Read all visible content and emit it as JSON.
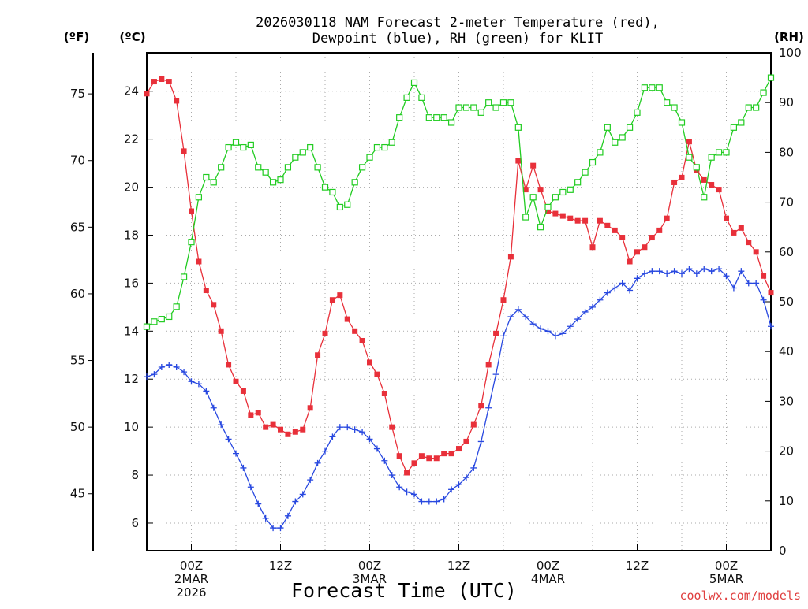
{
  "chart_data": {
    "type": "line",
    "title_line1": "2026030118 NAM Forecast 2-meter Temperature (red),",
    "title_line2": "Dewpoint (blue), RH (green) for KLIT",
    "xlabel": "Forecast Time (UTC)",
    "credit": "coolwx.com/models",
    "units": {
      "fahrenheit": "(ºF)",
      "celsius": "(ºC)",
      "rh": "(RH)"
    },
    "celsius_axis": {
      "range": [
        4.85,
        25.6
      ],
      "ticks": [
        "6",
        "8",
        "10",
        "12",
        "14",
        "16",
        "18",
        "20",
        "22",
        "24"
      ]
    },
    "fahrenheit_ticks": [
      "45",
      "50",
      "55",
      "60",
      "65",
      "70",
      "75"
    ],
    "rh_axis": {
      "range": [
        0,
        100
      ],
      "ticks": [
        "0",
        "10",
        "20",
        "30",
        "40",
        "50",
        "60",
        "70",
        "80",
        "90",
        "100"
      ]
    },
    "x_hours_range": [
      0,
      84
    ],
    "x_ticks": [
      {
        "hour": 6,
        "line1": "00Z",
        "line2": "2MAR",
        "line3": "2026"
      },
      {
        "hour": 18,
        "line1": "12Z",
        "line2": "",
        "line3": ""
      },
      {
        "hour": 30,
        "line1": "00Z",
        "line2": "3MAR",
        "line3": ""
      },
      {
        "hour": 42,
        "line1": "12Z",
        "line2": "",
        "line3": ""
      },
      {
        "hour": 54,
        "line1": "00Z",
        "line2": "4MAR",
        "line3": ""
      },
      {
        "hour": 66,
        "line1": "12Z",
        "line2": "",
        "line3": ""
      },
      {
        "hour": 78,
        "line1": "00Z",
        "line2": "5MAR",
        "line3": ""
      }
    ],
    "series": [
      {
        "name": "2-meter Temperature",
        "unit": "°C",
        "color": "#e8303a",
        "marker": "filled-square",
        "points": [
          [
            0,
            23.9
          ],
          [
            1,
            24.4
          ],
          [
            2,
            24.5
          ],
          [
            3,
            24.4
          ],
          [
            4,
            23.6
          ],
          [
            5,
            21.5
          ],
          [
            6,
            19.0
          ],
          [
            7,
            16.9
          ],
          [
            8,
            15.7
          ],
          [
            9,
            15.1
          ],
          [
            10,
            14.0
          ],
          [
            11,
            12.6
          ],
          [
            12,
            11.9
          ],
          [
            13,
            11.5
          ],
          [
            14,
            10.5
          ],
          [
            15,
            10.6
          ],
          [
            16,
            10.0
          ],
          [
            17,
            10.1
          ],
          [
            18,
            9.9
          ],
          [
            19,
            9.7
          ],
          [
            20,
            9.8
          ],
          [
            21,
            9.9
          ],
          [
            22,
            10.8
          ],
          [
            23,
            13.0
          ],
          [
            24,
            13.9
          ],
          [
            25,
            15.3
          ],
          [
            26,
            15.5
          ],
          [
            27,
            14.5
          ],
          [
            28,
            14.0
          ],
          [
            29,
            13.6
          ],
          [
            30,
            12.7
          ],
          [
            31,
            12.2
          ],
          [
            32,
            11.4
          ],
          [
            33,
            10.0
          ],
          [
            34,
            8.8
          ],
          [
            35,
            8.1
          ],
          [
            36,
            8.5
          ],
          [
            37,
            8.8
          ],
          [
            38,
            8.7
          ],
          [
            39,
            8.7
          ],
          [
            40,
            8.9
          ],
          [
            41,
            8.9
          ],
          [
            42,
            9.1
          ],
          [
            43,
            9.4
          ],
          [
            44,
            10.1
          ],
          [
            45,
            10.9
          ],
          [
            46,
            12.6
          ],
          [
            47,
            13.9
          ],
          [
            48,
            15.3
          ],
          [
            49,
            17.1
          ],
          [
            50,
            21.1
          ],
          [
            51,
            19.9
          ],
          [
            52,
            20.9
          ],
          [
            53,
            19.9
          ],
          [
            54,
            19.0
          ],
          [
            55,
            18.9
          ],
          [
            56,
            18.8
          ],
          [
            57,
            18.7
          ],
          [
            58,
            18.6
          ],
          [
            59,
            18.6
          ],
          [
            60,
            17.5
          ],
          [
            61,
            18.6
          ],
          [
            62,
            18.4
          ],
          [
            63,
            18.2
          ],
          [
            64,
            17.9
          ],
          [
            65,
            16.9
          ],
          [
            66,
            17.3
          ],
          [
            67,
            17.5
          ],
          [
            68,
            17.9
          ],
          [
            69,
            18.2
          ],
          [
            70,
            18.7
          ],
          [
            71,
            20.2
          ],
          [
            72,
            20.4
          ],
          [
            73,
            21.9
          ],
          [
            74,
            20.7
          ],
          [
            75,
            20.3
          ],
          [
            76,
            20.1
          ],
          [
            77,
            19.9
          ],
          [
            78,
            18.7
          ],
          [
            79,
            18.1
          ],
          [
            80,
            18.3
          ],
          [
            81,
            17.7
          ],
          [
            82,
            17.3
          ],
          [
            83,
            16.3
          ],
          [
            84,
            15.6
          ]
        ]
      },
      {
        "name": "Dewpoint",
        "unit": "°C",
        "color": "#2848e0",
        "marker": "plus",
        "points": [
          [
            0,
            12.1
          ],
          [
            1,
            12.2
          ],
          [
            2,
            12.5
          ],
          [
            3,
            12.6
          ],
          [
            4,
            12.5
          ],
          [
            5,
            12.3
          ],
          [
            6,
            11.9
          ],
          [
            7,
            11.8
          ],
          [
            8,
            11.5
          ],
          [
            9,
            10.8
          ],
          [
            10,
            10.1
          ],
          [
            11,
            9.5
          ],
          [
            12,
            8.9
          ],
          [
            13,
            8.3
          ],
          [
            14,
            7.5
          ],
          [
            15,
            6.8
          ],
          [
            16,
            6.2
          ],
          [
            17,
            5.8
          ],
          [
            18,
            5.8
          ],
          [
            19,
            6.3
          ],
          [
            20,
            6.9
          ],
          [
            21,
            7.2
          ],
          [
            22,
            7.8
          ],
          [
            23,
            8.5
          ],
          [
            24,
            9.0
          ],
          [
            25,
            9.6
          ],
          [
            26,
            10.0
          ],
          [
            27,
            10.0
          ],
          [
            28,
            9.9
          ],
          [
            29,
            9.8
          ],
          [
            30,
            9.5
          ],
          [
            31,
            9.1
          ],
          [
            32,
            8.6
          ],
          [
            33,
            8.0
          ],
          [
            34,
            7.5
          ],
          [
            35,
            7.3
          ],
          [
            36,
            7.2
          ],
          [
            37,
            6.9
          ],
          [
            38,
            6.9
          ],
          [
            39,
            6.9
          ],
          [
            40,
            7.0
          ],
          [
            41,
            7.4
          ],
          [
            42,
            7.6
          ],
          [
            43,
            7.9
          ],
          [
            44,
            8.3
          ],
          [
            45,
            9.4
          ],
          [
            46,
            10.8
          ],
          [
            47,
            12.2
          ],
          [
            48,
            13.8
          ],
          [
            49,
            14.6
          ],
          [
            50,
            14.9
          ],
          [
            51,
            14.6
          ],
          [
            52,
            14.3
          ],
          [
            53,
            14.1
          ],
          [
            54,
            14.0
          ],
          [
            55,
            13.8
          ],
          [
            56,
            13.9
          ],
          [
            57,
            14.2
          ],
          [
            58,
            14.5
          ],
          [
            59,
            14.8
          ],
          [
            60,
            15.0
          ],
          [
            61,
            15.3
          ],
          [
            62,
            15.6
          ],
          [
            63,
            15.8
          ],
          [
            64,
            16.0
          ],
          [
            65,
            15.7
          ],
          [
            66,
            16.2
          ],
          [
            67,
            16.4
          ],
          [
            68,
            16.5
          ],
          [
            69,
            16.5
          ],
          [
            70,
            16.4
          ],
          [
            71,
            16.5
          ],
          [
            72,
            16.4
          ],
          [
            73,
            16.6
          ],
          [
            74,
            16.4
          ],
          [
            75,
            16.6
          ],
          [
            76,
            16.5
          ],
          [
            77,
            16.6
          ],
          [
            78,
            16.3
          ],
          [
            79,
            15.8
          ],
          [
            80,
            16.5
          ],
          [
            81,
            16.0
          ],
          [
            82,
            16.0
          ],
          [
            83,
            15.3
          ],
          [
            84,
            14.2
          ]
        ]
      },
      {
        "name": "RH",
        "unit": "%",
        "color": "#22cc22",
        "marker": "open-square",
        "points": [
          [
            0,
            45
          ],
          [
            1,
            46
          ],
          [
            2,
            46.5
          ],
          [
            3,
            47
          ],
          [
            4,
            49
          ],
          [
            5,
            55
          ],
          [
            6,
            62
          ],
          [
            7,
            71
          ],
          [
            8,
            75
          ],
          [
            9,
            74
          ],
          [
            10,
            77
          ],
          [
            11,
            81
          ],
          [
            12,
            82
          ],
          [
            13,
            81
          ],
          [
            14,
            81.5
          ],
          [
            15,
            77
          ],
          [
            16,
            76
          ],
          [
            17,
            74
          ],
          [
            18,
            74.5
          ],
          [
            19,
            77
          ],
          [
            20,
            79
          ],
          [
            21,
            80
          ],
          [
            22,
            81
          ],
          [
            23,
            77
          ],
          [
            24,
            73
          ],
          [
            25,
            72
          ],
          [
            26,
            69
          ],
          [
            27,
            69.5
          ],
          [
            28,
            74
          ],
          [
            29,
            77
          ],
          [
            30,
            79
          ],
          [
            31,
            81
          ],
          [
            32,
            81
          ],
          [
            33,
            82
          ],
          [
            34,
            87
          ],
          [
            35,
            91
          ],
          [
            36,
            94
          ],
          [
            37,
            91
          ],
          [
            38,
            87
          ],
          [
            39,
            87
          ],
          [
            40,
            87
          ],
          [
            41,
            86
          ],
          [
            42,
            89
          ],
          [
            43,
            89
          ],
          [
            44,
            89
          ],
          [
            45,
            88
          ],
          [
            46,
            90
          ],
          [
            47,
            89
          ],
          [
            48,
            90
          ],
          [
            49,
            90
          ],
          [
            50,
            85
          ],
          [
            51,
            67
          ],
          [
            52,
            71
          ],
          [
            53,
            65
          ],
          [
            54,
            69
          ],
          [
            55,
            71
          ],
          [
            56,
            72
          ],
          [
            57,
            72.5
          ],
          [
            58,
            74
          ],
          [
            59,
            76
          ],
          [
            60,
            78
          ],
          [
            61,
            80
          ],
          [
            62,
            85
          ],
          [
            63,
            82
          ],
          [
            64,
            83
          ],
          [
            65,
            85
          ],
          [
            66,
            88
          ],
          [
            67,
            93
          ],
          [
            68,
            93
          ],
          [
            69,
            93
          ],
          [
            70,
            90
          ],
          [
            71,
            89
          ],
          [
            72,
            86
          ],
          [
            73,
            79
          ],
          [
            74,
            77
          ],
          [
            75,
            71
          ],
          [
            76,
            79
          ],
          [
            77,
            80
          ],
          [
            78,
            80
          ],
          [
            79,
            85
          ],
          [
            80,
            86
          ],
          [
            81,
            89
          ],
          [
            82,
            89
          ],
          [
            83,
            92
          ],
          [
            84,
            95
          ]
        ]
      }
    ]
  }
}
